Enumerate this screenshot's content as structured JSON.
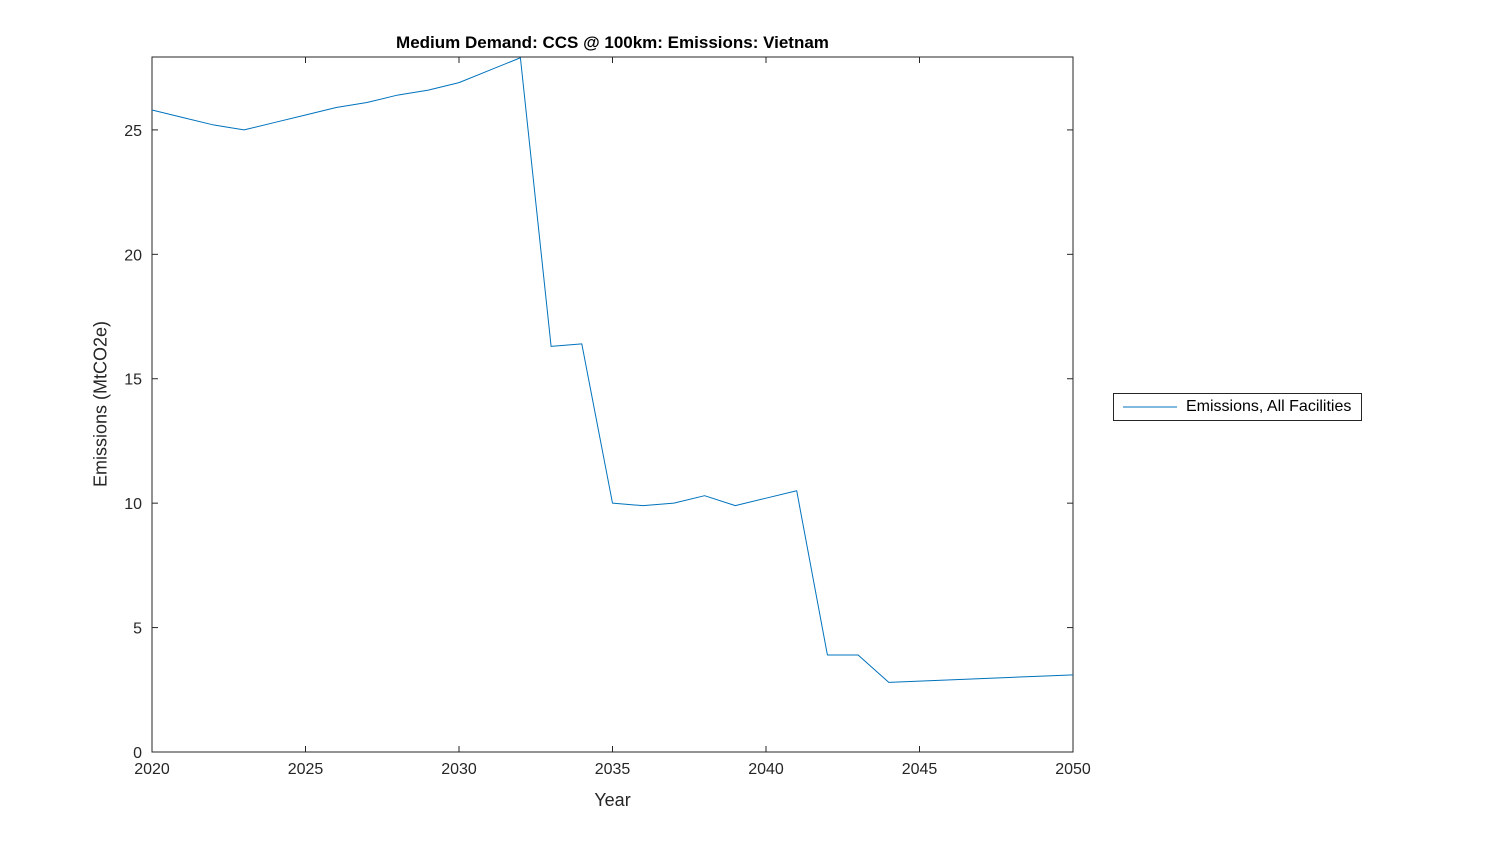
{
  "chart_data": {
    "type": "line",
    "title": "Medium Demand: CCS @ 100km: Emissions: Vietnam",
    "xlabel": "Year",
    "ylabel": "Emissions (MtCO2e)",
    "xlim": [
      2020,
      2050
    ],
    "ylim": [
      0,
      27.93
    ],
    "xticks": [
      2020,
      2025,
      2030,
      2035,
      2040,
      2045,
      2050
    ],
    "yticks": [
      0,
      5,
      10,
      15,
      20,
      25
    ],
    "grid": false,
    "axis_color": "#262626",
    "legend": {
      "position": "right-outside",
      "entries": [
        "Emissions, All Facilities"
      ]
    },
    "series": [
      {
        "name": "Emissions, All Facilities",
        "color": "#0072BD",
        "x": [
          2020,
          2021,
          2022,
          2023,
          2024,
          2025,
          2026,
          2027,
          2028,
          2029,
          2030,
          2031,
          2032,
          2033,
          2034,
          2035,
          2036,
          2037,
          2038,
          2039,
          2040,
          2041,
          2042,
          2043,
          2044,
          2045,
          2046,
          2047,
          2048,
          2049,
          2050
        ],
        "y": [
          25.8,
          25.5,
          25.2,
          25.0,
          25.3,
          25.6,
          25.9,
          26.1,
          26.4,
          26.6,
          26.9,
          27.4,
          27.9,
          16.3,
          16.4,
          10.0,
          9.9,
          10.0,
          10.3,
          9.9,
          10.2,
          10.5,
          3.9,
          3.9,
          2.8,
          2.85,
          2.9,
          2.95,
          3.0,
          3.05,
          3.1
        ]
      }
    ]
  }
}
